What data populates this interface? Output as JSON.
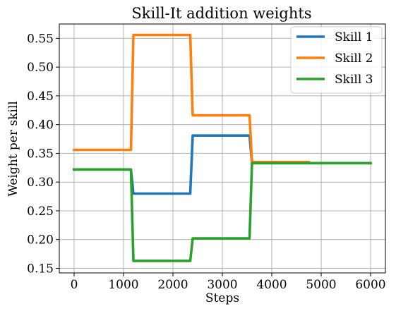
{
  "chart_data": {
    "type": "line",
    "title": "Skill-It addition weights",
    "xlabel": "Steps",
    "ylabel": "Weight per skill",
    "xlim": [
      -300,
      6300
    ],
    "ylim": [
      0.142,
      0.575
    ],
    "xticks": [
      0,
      1000,
      2000,
      3000,
      4000,
      5000,
      6000
    ],
    "yticks": [
      0.15,
      0.2,
      0.25,
      0.3,
      0.35,
      0.4,
      0.45,
      0.5,
      0.55
    ],
    "xtick_labels": [
      "0",
      "1000",
      "2000",
      "3000",
      "4000",
      "5000",
      "6000"
    ],
    "ytick_labels": [
      "0.15",
      "0.20",
      "0.25",
      "0.30",
      "0.35",
      "0.40",
      "0.45",
      "0.50",
      "0.55"
    ],
    "grid": true,
    "legend_position": "top-right",
    "series": [
      {
        "name": "Skill 1",
        "color": "#1f77b4",
        "x": [
          0,
          1150,
          1200,
          2350,
          2400,
          3550,
          3600,
          6000
        ],
        "y": [
          0.322,
          0.322,
          0.28,
          0.28,
          0.381,
          0.381,
          0.333,
          0.333
        ]
      },
      {
        "name": "Skill 2",
        "color": "#ff7f0e",
        "x": [
          0,
          1150,
          1200,
          2350,
          2400,
          3550,
          3600,
          4750
        ],
        "y": [
          0.356,
          0.356,
          0.556,
          0.556,
          0.416,
          0.416,
          0.335,
          0.335
        ]
      },
      {
        "name": "Skill 3",
        "color": "#2ca02c",
        "x": [
          0,
          1150,
          1200,
          2350,
          2400,
          3550,
          3600,
          6000
        ],
        "y": [
          0.322,
          0.322,
          0.163,
          0.163,
          0.202,
          0.202,
          0.333,
          0.333
        ]
      }
    ]
  }
}
